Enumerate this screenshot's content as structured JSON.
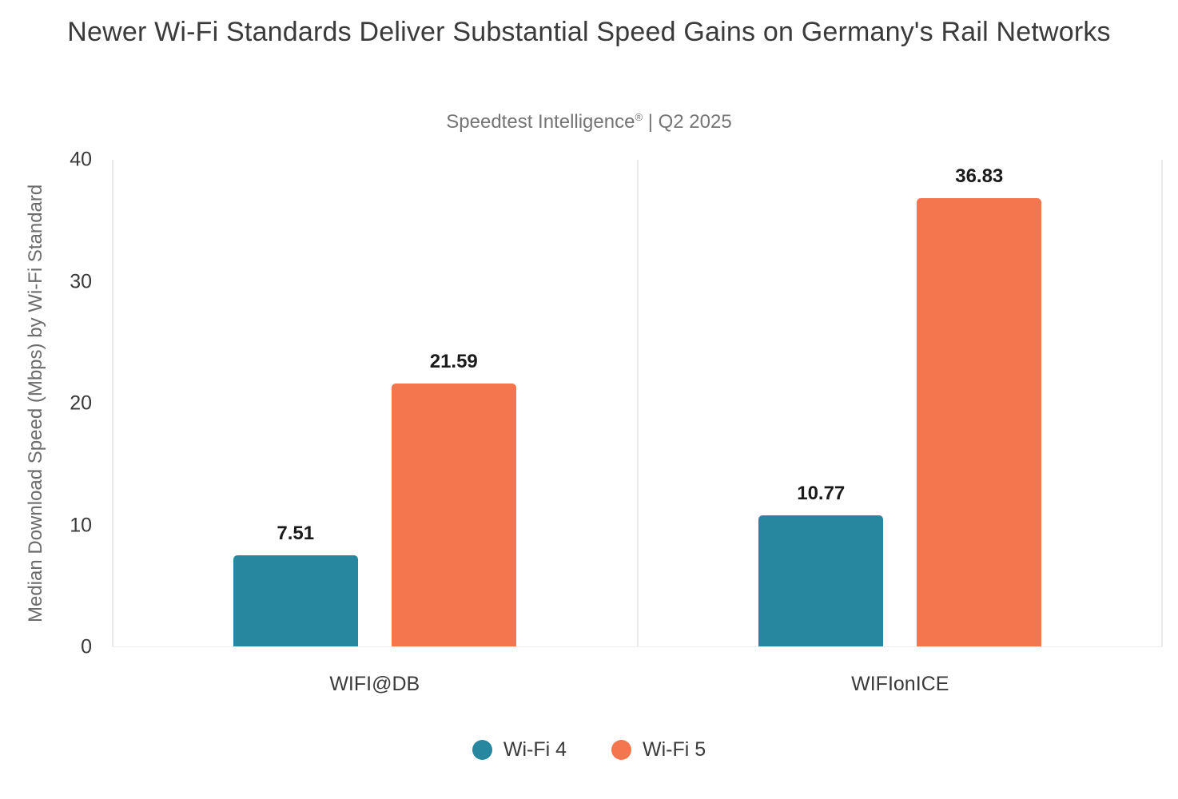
{
  "header": {
    "title": "Newer Wi-Fi Standards Deliver Substantial Speed Gains on Germany's Rail Networks",
    "subtitle_brand": "Speedtest Intelligence",
    "subtitle_reg": "®",
    "subtitle_rest": " | Q2 2025"
  },
  "colors": {
    "wifi4_teal": "#27879F",
    "wifi5_orange": "#F3764E",
    "title_text": "#3a3a3a",
    "subtitle_text": "#757575",
    "axis_text": "#6b6b6b",
    "divider": "#e9e9e9"
  },
  "chart_data": {
    "type": "bar",
    "title": "Newer Wi-Fi Standards Deliver Substantial Speed Gains on Germany's Rail Networks",
    "subtitle": "Speedtest Intelligence® | Q2 2025",
    "xlabel": "",
    "ylabel": "Median Download Speed (Mbps) by Wi-Fi Standard",
    "ylim": [
      0,
      40
    ],
    "yticks_display": [
      40,
      30,
      20,
      10,
      0
    ],
    "grid": "off",
    "legend_position": "bottom",
    "categories": [
      "WIFI@DB",
      "WIFIonICE"
    ],
    "series": [
      {
        "name": "Wi-Fi 4",
        "color": "#27879F",
        "values": [
          7.51,
          10.77
        ]
      },
      {
        "name": "Wi-Fi 5",
        "color": "#F3764E",
        "values": [
          21.59,
          36.83
        ]
      }
    ]
  }
}
